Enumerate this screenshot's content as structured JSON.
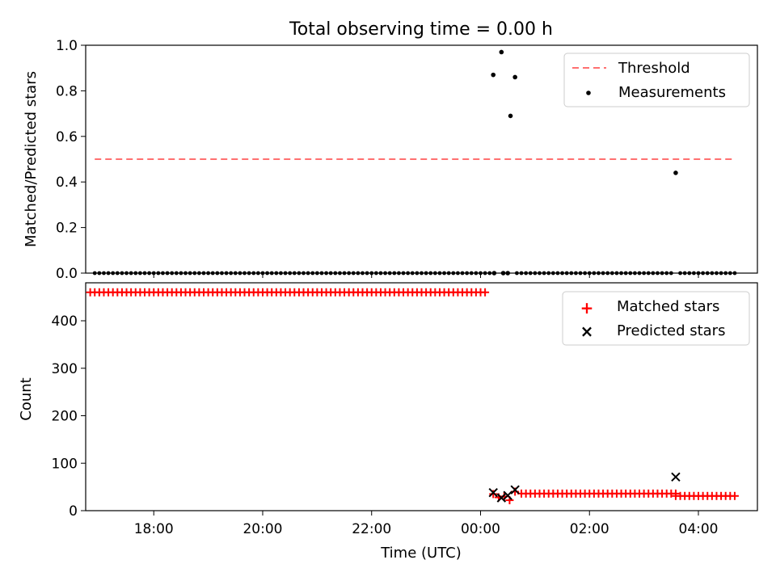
{
  "figure_title": "Total observing time = 0.00 h",
  "colors": {
    "threshold": "#ff7070",
    "measurements": "#000000",
    "matched": "#ff0000",
    "predicted": "#000000"
  },
  "chart_data": [
    {
      "type": "scatter",
      "title": "Total observing time = 0.00 h",
      "xlabel": "",
      "ylabel": "Matched/Predicted stars",
      "ylim": [
        0,
        1.0
      ],
      "yticks": [
        "0.0",
        "0.2",
        "0.4",
        "0.6",
        "0.8",
        "1.0"
      ],
      "xticks": [
        "18:00",
        "20:00",
        "22:00",
        "00:00",
        "02:00",
        "04:00"
      ],
      "xrange": [
        "16:45",
        "05:05"
      ],
      "grid": false,
      "legend_position": "top-right",
      "series": [
        {
          "name": "Threshold",
          "kind": "dashed-line",
          "x": [
            "16:55",
            "04:40"
          ],
          "y": [
            0.5,
            0.5
          ]
        },
        {
          "name": "Measurements",
          "kind": "points",
          "zero_run_segments": [
            [
              "16:55",
              "00:10"
            ],
            [
              "00:40",
              "03:30"
            ],
            [
              "03:40",
              "04:40"
            ]
          ],
          "points": [
            {
              "x": "00:15",
              "y": 0.0
            },
            {
              "x": "00:25",
              "y": 0.0
            },
            {
              "x": "00:30",
              "y": 0.0
            },
            {
              "x": "00:14",
              "y": 0.87
            },
            {
              "x": "00:23",
              "y": 0.97
            },
            {
              "x": "00:33",
              "y": 0.69
            },
            {
              "x": "00:38",
              "y": 0.86
            },
            {
              "x": "03:35",
              "y": 0.44
            }
          ]
        }
      ]
    },
    {
      "type": "scatter",
      "xlabel": "Time (UTC)",
      "ylabel": "Count",
      "ylim": [
        0,
        480
      ],
      "yticks": [
        "0",
        "100",
        "200",
        "300",
        "400"
      ],
      "xticks": [
        "18:00",
        "20:00",
        "22:00",
        "00:00",
        "02:00",
        "04:00"
      ],
      "grid": false,
      "legend_position": "top-right",
      "series": [
        {
          "name": "Matched stars",
          "marker": "+",
          "segments": [
            {
              "from": "16:50",
              "to": "00:08",
              "value": 460
            },
            {
              "from": "00:45",
              "to": "03:35",
              "value": 36
            },
            {
              "from": "03:35",
              "to": "04:40",
              "value": 31
            }
          ],
          "points": [
            {
              "x": "00:14",
              "y": 35
            },
            {
              "x": "00:20",
              "y": 28
            },
            {
              "x": "00:26",
              "y": 30
            },
            {
              "x": "00:32",
              "y": 22
            },
            {
              "x": "00:38",
              "y": 40
            }
          ]
        },
        {
          "name": "Predicted stars",
          "marker": "x",
          "points": [
            {
              "x": "00:14",
              "y": 38
            },
            {
              "x": "00:23",
              "y": 27
            },
            {
              "x": "00:30",
              "y": 32
            },
            {
              "x": "00:38",
              "y": 44
            },
            {
              "x": "03:35",
              "y": 71
            }
          ]
        }
      ]
    }
  ]
}
